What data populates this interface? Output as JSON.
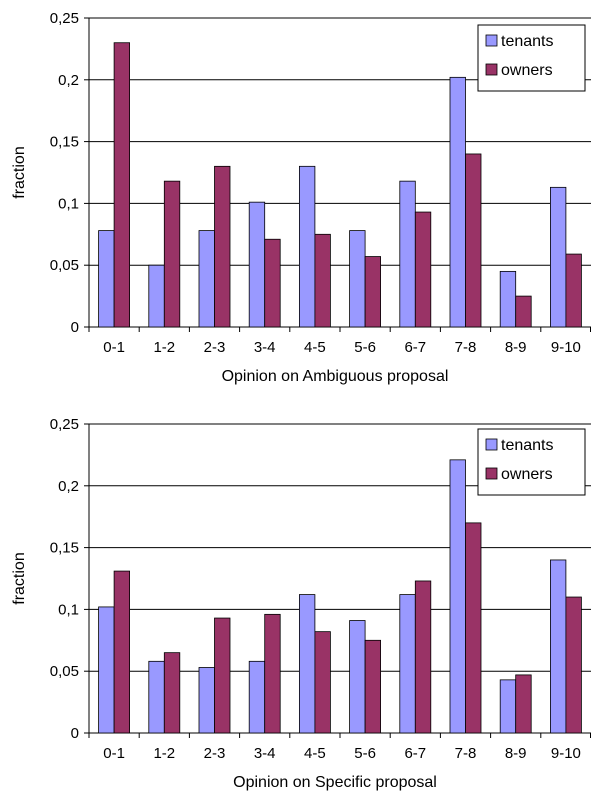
{
  "chart_data": [
    {
      "type": "bar",
      "title": "",
      "xlabel": "Opinion on Ambiguous proposal",
      "ylabel": "fraction",
      "ylim": [
        0,
        0.25
      ],
      "yticks": [
        "0",
        "0,05",
        "0,1",
        "0,15",
        "0,2",
        "0,25"
      ],
      "categories": [
        "0-1",
        "1-2",
        "2-3",
        "3-4",
        "4-5",
        "5-6",
        "6-7",
        "7-8",
        "8-9",
        "9-10"
      ],
      "grid": true,
      "legend": "top-right",
      "series": [
        {
          "name": "tenants",
          "color": "#9999ff",
          "values": [
            0.078,
            0.05,
            0.078,
            0.101,
            0.13,
            0.078,
            0.118,
            0.202,
            0.045,
            0.113
          ]
        },
        {
          "name": "owners",
          "color": "#993366",
          "values": [
            0.23,
            0.118,
            0.13,
            0.071,
            0.075,
            0.057,
            0.093,
            0.14,
            0.025,
            0.059
          ]
        }
      ]
    },
    {
      "type": "bar",
      "title": "",
      "xlabel": "Opinion on Specific proposal",
      "ylabel": "fraction",
      "ylim": [
        0,
        0.25
      ],
      "yticks": [
        "0",
        "0,05",
        "0,1",
        "0,15",
        "0,2",
        "0,25"
      ],
      "categories": [
        "0-1",
        "1-2",
        "2-3",
        "3-4",
        "4-5",
        "5-6",
        "6-7",
        "7-8",
        "8-9",
        "9-10"
      ],
      "grid": true,
      "legend": "top-right",
      "series": [
        {
          "name": "tenants",
          "color": "#9999ff",
          "values": [
            0.102,
            0.058,
            0.053,
            0.058,
            0.112,
            0.091,
            0.112,
            0.221,
            0.043,
            0.14
          ]
        },
        {
          "name": "owners",
          "color": "#993366",
          "values": [
            0.131,
            0.065,
            0.093,
            0.096,
            0.082,
            0.075,
            0.123,
            0.17,
            0.047,
            0.11
          ]
        }
      ]
    }
  ]
}
